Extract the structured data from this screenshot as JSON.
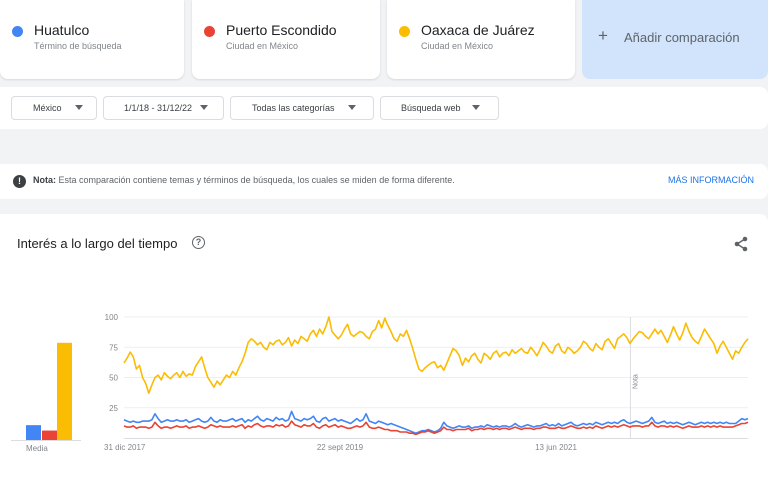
{
  "terms": [
    {
      "name": "Huatulco",
      "type": "Término de búsqueda",
      "color": "#4285f4"
    },
    {
      "name": "Puerto Escondido",
      "type": "Ciudad en México",
      "color": "#ea4335"
    },
    {
      "name": "Oaxaca de Juárez",
      "type": "Ciudad en México",
      "color": "#fbbc04"
    }
  ],
  "add_comparison": {
    "icon": "plus-icon",
    "label": "Añadir comparación"
  },
  "filters": {
    "region": "México",
    "period": "1/1/18 - 31/12/22",
    "category": "Todas las categorías",
    "search_type": "Búsqueda web"
  },
  "note": {
    "icon": "info-icon",
    "label": "Nota:",
    "text": "Esta comparación contiene temas y términos de búsqueda, los cuales se miden de forma diferente.",
    "more": "MÁS INFORMACIÓN"
  },
  "chart_card": {
    "title": "Interés a lo largo del tiempo",
    "help_icon": "help-icon",
    "share_icon": "share-icon",
    "mean_label": "Media",
    "note_marker": "Nota"
  },
  "chart_data": {
    "type": "line",
    "yticks": [
      25,
      50,
      75,
      100
    ],
    "ylim": [
      0,
      100
    ],
    "x_tick_labels": [
      "31 dic 2017",
      "22 sept 2019",
      "13 jun 2021"
    ],
    "x_range": [
      "2017-12-31",
      "2022-12-25"
    ],
    "grid": true,
    "means": [
      {
        "name": "Huatulco",
        "value": 11
      },
      {
        "name": "Puerto Escondido",
        "value": 7
      },
      {
        "name": "Oaxaca de Juárez",
        "value": 72
      }
    ],
    "series": [
      {
        "name": "Oaxaca de Juárez",
        "color": "#fbbc04",
        "values": [
          62,
          66,
          71,
          67,
          57,
          60,
          50,
          45,
          37,
          44,
          50,
          52,
          48,
          54,
          51,
          49,
          52,
          54,
          50,
          55,
          51,
          53,
          52,
          59,
          63,
          67,
          58,
          50,
          46,
          42,
          47,
          44,
          48,
          52,
          50,
          55,
          52,
          58,
          63,
          70,
          79,
          82,
          80,
          77,
          79,
          75,
          73,
          79,
          77,
          80,
          81,
          77,
          79,
          83,
          76,
          81,
          78,
          84,
          82,
          80,
          86,
          89,
          84,
          90,
          86,
          92,
          100,
          88,
          85,
          82,
          85,
          90,
          94,
          86,
          84,
          86,
          88,
          87,
          84,
          82,
          88,
          90,
          97,
          91,
          99,
          93,
          88,
          82,
          80,
          86,
          84,
          89,
          82,
          74,
          65,
          57,
          55,
          58,
          60,
          62,
          63,
          58,
          60,
          56,
          62,
          68,
          74,
          72,
          68,
          60,
          66,
          63,
          68,
          70,
          65,
          62,
          70,
          68,
          65,
          70,
          72,
          67,
          70,
          71,
          68,
          73,
          70,
          72,
          74,
          71,
          70,
          75,
          72,
          68,
          73,
          79,
          76,
          72,
          70,
          76,
          78,
          72,
          70,
          75,
          73,
          70,
          72,
          75,
          80,
          78,
          74,
          72,
          78,
          75,
          73,
          80,
          82,
          78,
          74,
          82,
          84,
          86,
          83,
          78,
          82,
          85,
          88,
          87,
          84,
          82,
          86,
          90,
          86,
          89,
          84,
          79,
          85,
          92,
          86,
          81,
          87,
          95,
          88,
          83,
          80,
          78,
          84,
          90,
          86,
          82,
          78,
          70,
          76,
          80,
          75,
          70,
          65,
          72,
          70,
          75,
          79,
          82
        ]
      },
      {
        "name": "Huatulco",
        "color": "#4285f4",
        "values": [
          15,
          14,
          13,
          14,
          13,
          13,
          14,
          14,
          14,
          15,
          20,
          16,
          13,
          14,
          15,
          14,
          14,
          15,
          14,
          14,
          15,
          13,
          14,
          15,
          16,
          14,
          13,
          14,
          17,
          14,
          13,
          15,
          14,
          14,
          15,
          16,
          14,
          15,
          16,
          13,
          15,
          14,
          16,
          18,
          15,
          14,
          16,
          15,
          14,
          17,
          15,
          16,
          14,
          15,
          22,
          16,
          15,
          14,
          16,
          15,
          16,
          18,
          14,
          13,
          16,
          17,
          14,
          15,
          16,
          14,
          15,
          14,
          13,
          12,
          14,
          16,
          14,
          15,
          20,
          14,
          13,
          12,
          14,
          13,
          12,
          11,
          12,
          11,
          10,
          9,
          8,
          7,
          6,
          5,
          4,
          5,
          6,
          6,
          7,
          6,
          5,
          6,
          8,
          13,
          10,
          9,
          8,
          9,
          10,
          9,
          9,
          10,
          8,
          9,
          9,
          10,
          9,
          11,
          10,
          9,
          10,
          9,
          10,
          10,
          9,
          10,
          12,
          10,
          9,
          10,
          11,
          10,
          9,
          10,
          10,
          11,
          12,
          10,
          11,
          10,
          12,
          10,
          11,
          12,
          13,
          11,
          10,
          11,
          12,
          11,
          12,
          11,
          13,
          12,
          11,
          12,
          13,
          12,
          13,
          12,
          14,
          15,
          13,
          12,
          13,
          14,
          13,
          12,
          13,
          14,
          17,
          13,
          12,
          13,
          14,
          12,
          13,
          12,
          13,
          12,
          11,
          12,
          13,
          12,
          11,
          12,
          13,
          12,
          13,
          12,
          13,
          12,
          13,
          12,
          13,
          12,
          12,
          12,
          14,
          16,
          15,
          16
        ]
      },
      {
        "name": "Puerto Escondido",
        "color": "#ea4335",
        "values": [
          10,
          9,
          9,
          10,
          8,
          9,
          9,
          9,
          8,
          9,
          13,
          10,
          8,
          9,
          9,
          8,
          9,
          10,
          9,
          9,
          10,
          8,
          9,
          9,
          10,
          9,
          8,
          9,
          11,
          10,
          9,
          10,
          9,
          9,
          9,
          10,
          9,
          10,
          11,
          8,
          10,
          9,
          11,
          12,
          10,
          9,
          10,
          10,
          9,
          11,
          10,
          11,
          9,
          10,
          14,
          11,
          10,
          9,
          11,
          10,
          10,
          12,
          9,
          8,
          10,
          11,
          9,
          10,
          11,
          9,
          10,
          9,
          8,
          8,
          9,
          10,
          9,
          10,
          13,
          9,
          8,
          8,
          9,
          8,
          7,
          7,
          6,
          6,
          6,
          5,
          5,
          5,
          4,
          4,
          3,
          4,
          5,
          5,
          6,
          5,
          4,
          5,
          6,
          9,
          7,
          7,
          6,
          7,
          7,
          7,
          7,
          8,
          6,
          7,
          7,
          8,
          7,
          8,
          8,
          7,
          8,
          7,
          8,
          8,
          7,
          8,
          9,
          8,
          7,
          8,
          8,
          8,
          7,
          8,
          8,
          9,
          9,
          8,
          8,
          8,
          9,
          8,
          8,
          9,
          10,
          9,
          8,
          8,
          9,
          8,
          9,
          8,
          10,
          9,
          8,
          9,
          10,
          9,
          10,
          9,
          10,
          11,
          10,
          9,
          10,
          10,
          10,
          9,
          10,
          10,
          13,
          10,
          9,
          10,
          10,
          9,
          10,
          9,
          10,
          9,
          8,
          9,
          10,
          9,
          9,
          9,
          10,
          9,
          10,
          9,
          10,
          9,
          10,
          9,
          9,
          9,
          9,
          10,
          11,
          12,
          12,
          13
        ]
      }
    ]
  }
}
